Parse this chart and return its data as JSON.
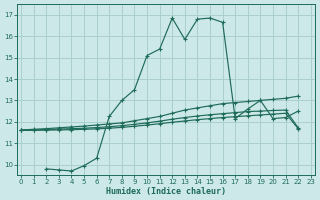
{
  "xlabel": "Humidex (Indice chaleur)",
  "background_color": "#cce8e8",
  "grid_color": "#aacfcf",
  "line_color": "#1e6b5a",
  "xlim": [
    -0.3,
    23.3
  ],
  "ylim": [
    9.5,
    17.5
  ],
  "yticks": [
    10,
    11,
    12,
    13,
    14,
    15,
    16,
    17
  ],
  "xticks": [
    0,
    1,
    2,
    3,
    4,
    5,
    6,
    7,
    8,
    9,
    10,
    11,
    12,
    13,
    14,
    15,
    16,
    17,
    18,
    19,
    20,
    21,
    22,
    23
  ],
  "series": [
    {
      "x": [
        2,
        3,
        4,
        5,
        6,
        7,
        8,
        9,
        10,
        11,
        12,
        13,
        14,
        15,
        16,
        17,
        18,
        19,
        20,
        21,
        22
      ],
      "y": [
        9.8,
        9.75,
        9.7,
        9.95,
        10.3,
        12.25,
        13.0,
        13.5,
        15.1,
        15.4,
        16.85,
        15.85,
        16.8,
        16.85,
        16.65,
        12.15,
        12.6,
        13.0,
        12.15,
        12.2,
        12.5
      ],
      "has_marker": true
    },
    {
      "x": [
        0,
        1,
        2,
        3,
        4,
        5,
        6,
        7,
        8,
        9,
        10,
        11,
        12,
        13,
        14,
        15,
        16,
        17,
        18,
        19,
        20,
        21,
        22
      ],
      "y": [
        11.62,
        11.65,
        11.68,
        11.72,
        11.76,
        11.8,
        11.85,
        11.9,
        11.95,
        12.05,
        12.15,
        12.25,
        12.4,
        12.55,
        12.65,
        12.75,
        12.85,
        12.9,
        12.95,
        13.0,
        13.05,
        13.1,
        13.2
      ],
      "has_marker": true
    },
    {
      "x": [
        0,
        1,
        2,
        3,
        4,
        5,
        6,
        7,
        8,
        9,
        10,
        11,
        12,
        13,
        14,
        15,
        16,
        17,
        18,
        19,
        20,
        21,
        22
      ],
      "y": [
        11.6,
        11.62,
        11.64,
        11.66,
        11.68,
        11.7,
        11.73,
        11.77,
        11.82,
        11.88,
        11.95,
        12.03,
        12.12,
        12.2,
        12.27,
        12.33,
        12.38,
        12.43,
        12.48,
        12.5,
        12.53,
        12.55,
        11.72
      ],
      "has_marker": true
    },
    {
      "x": [
        0,
        1,
        2,
        3,
        4,
        5,
        6,
        7,
        8,
        9,
        10,
        11,
        12,
        13,
        14,
        15,
        16,
        17,
        18,
        19,
        20,
        21,
        22
      ],
      "y": [
        11.6,
        11.6,
        11.61,
        11.62,
        11.63,
        11.65,
        11.67,
        11.7,
        11.74,
        11.79,
        11.85,
        11.91,
        11.98,
        12.04,
        12.1,
        12.15,
        12.2,
        12.24,
        12.28,
        12.32,
        12.36,
        12.4,
        11.68
      ],
      "has_marker": true
    }
  ]
}
